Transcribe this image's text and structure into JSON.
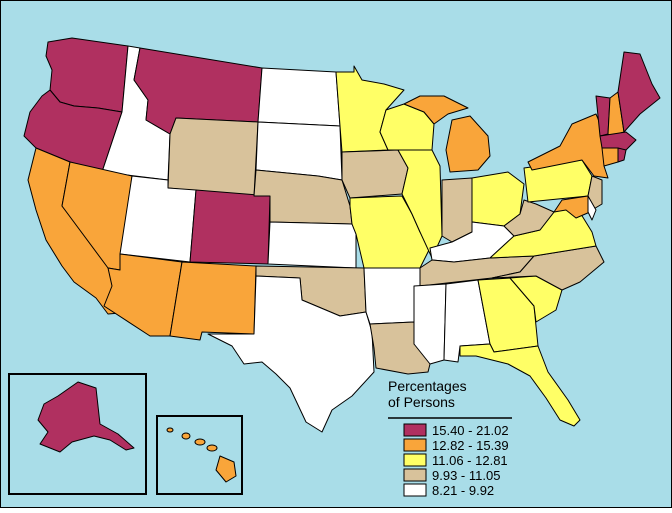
{
  "legend": {
    "title_line1": "Percentages",
    "title_line2": "of Persons",
    "bins": [
      {
        "label": "15.40 - 21.02",
        "color": "#B03060"
      },
      {
        "label": "12.82 - 15.39",
        "color": "#F9A53A"
      },
      {
        "label": "11.06 - 12.81",
        "color": "#FFFF66"
      },
      {
        "label": "9.93 - 11.05",
        "color": "#D8C29B"
      },
      {
        "label": "8.21 - 9.92",
        "color": "#FFFFFF"
      }
    ]
  },
  "colors": {
    "ocean": "#A9DDE8",
    "land_border": "#000000"
  },
  "states": [
    {
      "id": "WA",
      "bin": 0
    },
    {
      "id": "OR",
      "bin": 0
    },
    {
      "id": "MT",
      "bin": 0
    },
    {
      "id": "CO",
      "bin": 0
    },
    {
      "id": "VT",
      "bin": 0
    },
    {
      "id": "ME",
      "bin": 0
    },
    {
      "id": "MA",
      "bin": 0
    },
    {
      "id": "RI",
      "bin": 0
    },
    {
      "id": "AK",
      "bin": 0
    },
    {
      "id": "CA",
      "bin": 1
    },
    {
      "id": "NV",
      "bin": 1
    },
    {
      "id": "AZ",
      "bin": 1
    },
    {
      "id": "NM",
      "bin": 1
    },
    {
      "id": "MI",
      "bin": 1
    },
    {
      "id": "NY",
      "bin": 1
    },
    {
      "id": "NH",
      "bin": 1
    },
    {
      "id": "CT",
      "bin": 1
    },
    {
      "id": "MD",
      "bin": 1
    },
    {
      "id": "HI",
      "bin": 1
    },
    {
      "id": "MN",
      "bin": 2
    },
    {
      "id": "WI",
      "bin": 2
    },
    {
      "id": "IL",
      "bin": 2
    },
    {
      "id": "MO",
      "bin": 2
    },
    {
      "id": "OH",
      "bin": 2
    },
    {
      "id": "PA",
      "bin": 2
    },
    {
      "id": "VA",
      "bin": 2
    },
    {
      "id": "GA",
      "bin": 2
    },
    {
      "id": "SC",
      "bin": 2
    },
    {
      "id": "FL",
      "bin": 2
    },
    {
      "id": "WY",
      "bin": 3
    },
    {
      "id": "NE",
      "bin": 3
    },
    {
      "id": "IA",
      "bin": 3
    },
    {
      "id": "IN",
      "bin": 3
    },
    {
      "id": "WV",
      "bin": 3
    },
    {
      "id": "OK",
      "bin": 3
    },
    {
      "id": "TN",
      "bin": 3
    },
    {
      "id": "NC",
      "bin": 3
    },
    {
      "id": "LA",
      "bin": 3
    },
    {
      "id": "NJ",
      "bin": 3
    },
    {
      "id": "ID",
      "bin": 4
    },
    {
      "id": "UT",
      "bin": 4
    },
    {
      "id": "ND",
      "bin": 4
    },
    {
      "id": "SD",
      "bin": 4
    },
    {
      "id": "KS",
      "bin": 4
    },
    {
      "id": "TX",
      "bin": 4
    },
    {
      "id": "AR",
      "bin": 4
    },
    {
      "id": "MS",
      "bin": 4
    },
    {
      "id": "AL",
      "bin": 4
    },
    {
      "id": "KY",
      "bin": 4
    },
    {
      "id": "DE",
      "bin": 4
    }
  ]
}
